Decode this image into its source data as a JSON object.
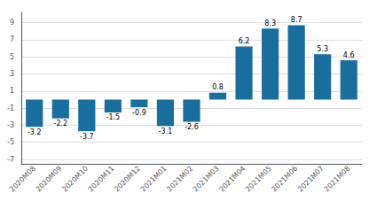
{
  "chart_data": {
    "type": "bar",
    "categories": [
      "2020M08",
      "2020M09",
      "2020M10",
      "2020M11",
      "2020M12",
      "2021M01",
      "2021M02",
      "2021M03",
      "2021M04",
      "2021M05",
      "2021M06",
      "2021M07",
      "2021M08"
    ],
    "values": [
      -3.2,
      -2.2,
      -3.7,
      -1.5,
      -0.9,
      -3.1,
      -2.6,
      0.8,
      6.2,
      8.3,
      8.7,
      5.3,
      4.6
    ],
    "color": "#1a6e9e",
    "ylim": [
      -7.5,
      10.2
    ],
    "yticks": [
      -7,
      -5,
      -3,
      -1,
      1,
      3,
      5,
      7,
      9
    ],
    "grid": true,
    "data_labels": true
  }
}
